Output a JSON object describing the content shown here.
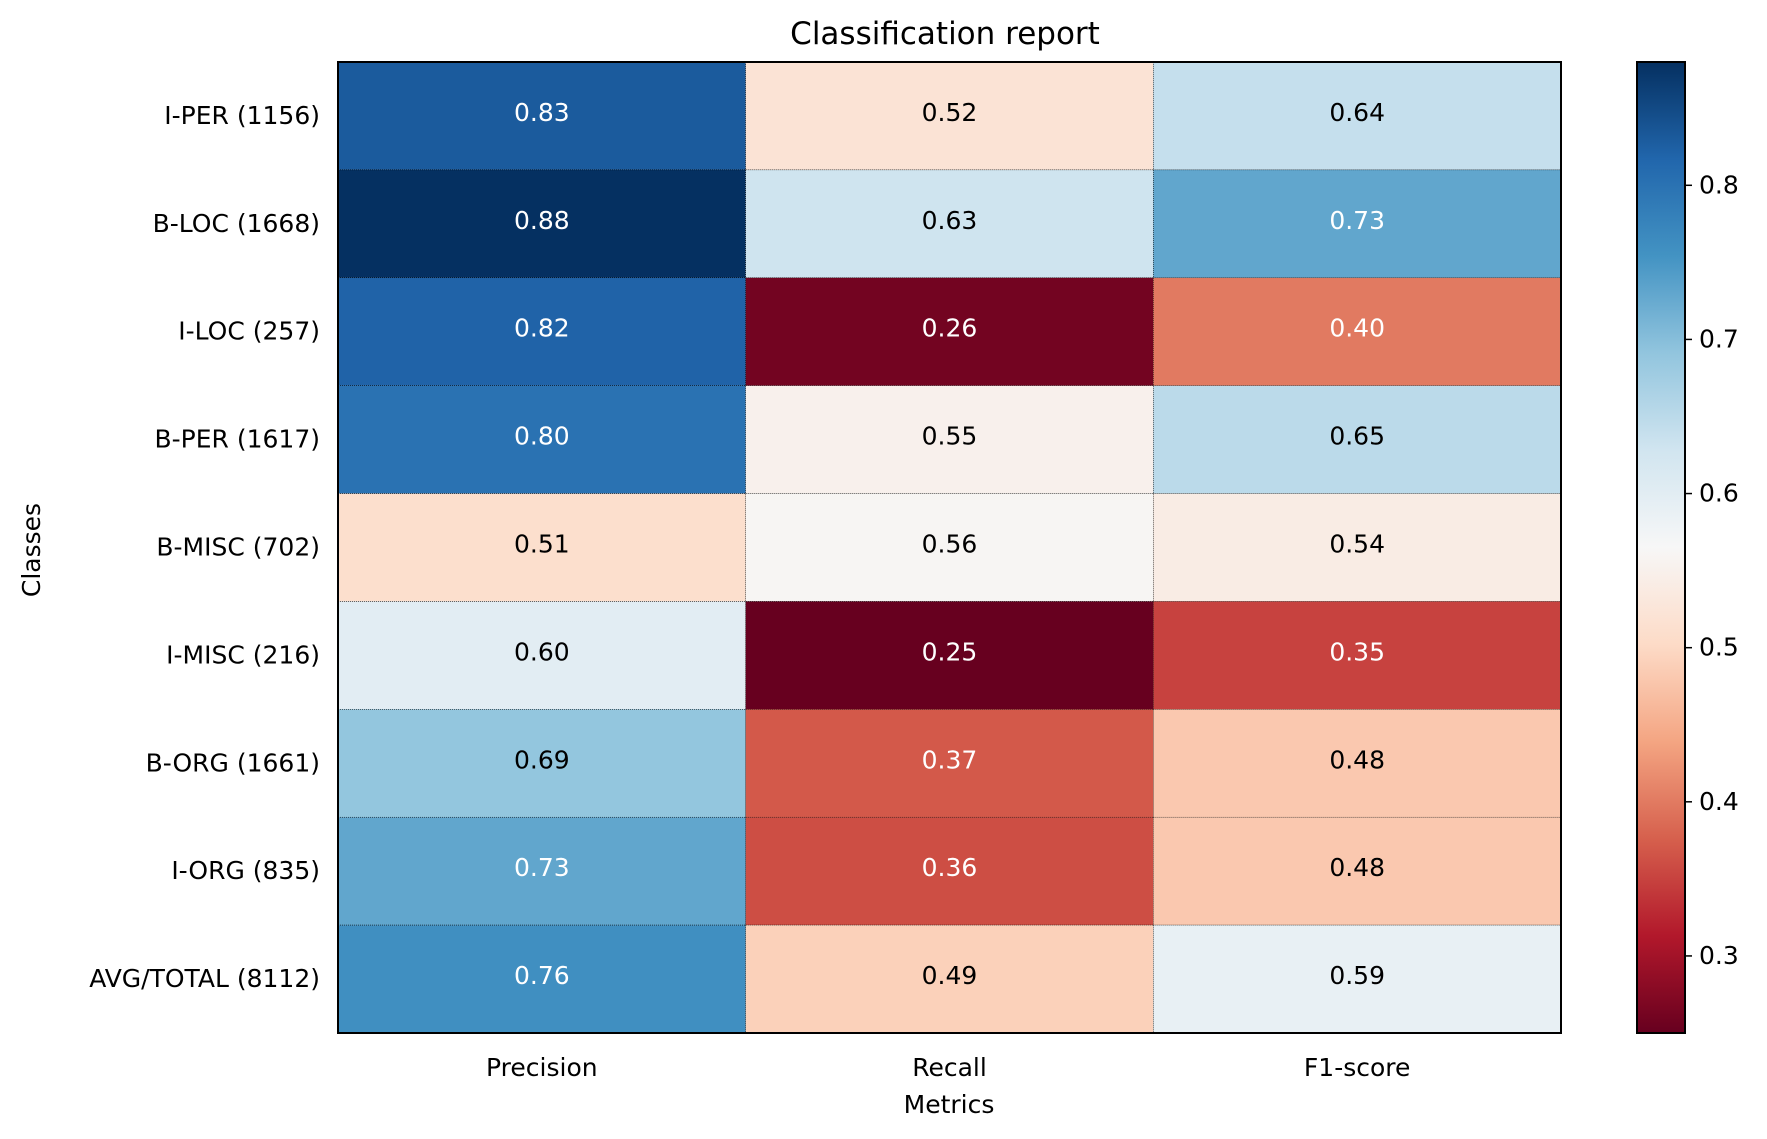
{
  "chart_data": {
    "type": "heatmap",
    "title": "Classification report",
    "xlabel": "Metrics",
    "ylabel": "Classes",
    "x_categories": [
      "Precision",
      "Recall",
      "F1-score"
    ],
    "y_categories": [
      "I-PER (1156)",
      "B-LOC (1668)",
      "I-LOC (257)",
      "B-PER (1617)",
      "B-MISC (702)",
      "I-MISC (216)",
      "B-ORG (1661)",
      "I-ORG (835)",
      "AVG/TOTAL (8112)"
    ],
    "values": [
      [
        0.83,
        0.52,
        0.64
      ],
      [
        0.88,
        0.63,
        0.73
      ],
      [
        0.82,
        0.26,
        0.4
      ],
      [
        0.8,
        0.55,
        0.65
      ],
      [
        0.51,
        0.56,
        0.54
      ],
      [
        0.6,
        0.25,
        0.35
      ],
      [
        0.69,
        0.37,
        0.48
      ],
      [
        0.73,
        0.36,
        0.48
      ],
      [
        0.76,
        0.49,
        0.59
      ]
    ],
    "value_labels": [
      [
        "0.83",
        "0.52",
        "0.64"
      ],
      [
        "0.88",
        "0.63",
        "0.73"
      ],
      [
        "0.82",
        "0.26",
        "0.40"
      ],
      [
        "0.80",
        "0.55",
        "0.65"
      ],
      [
        "0.51",
        "0.56",
        "0.54"
      ],
      [
        "0.60",
        "0.25",
        "0.35"
      ],
      [
        "0.69",
        "0.37",
        "0.48"
      ],
      [
        "0.73",
        "0.36",
        "0.48"
      ],
      [
        "0.76",
        "0.49",
        "0.59"
      ]
    ],
    "colormap": "RdBu",
    "colorbar": {
      "range": [
        0.25,
        0.88
      ],
      "ticks": [
        0.3,
        0.4,
        0.5,
        0.6,
        0.7,
        0.8
      ],
      "tick_labels": [
        "0.3",
        "0.4",
        "0.5",
        "0.6",
        "0.7",
        "0.8"
      ]
    }
  }
}
